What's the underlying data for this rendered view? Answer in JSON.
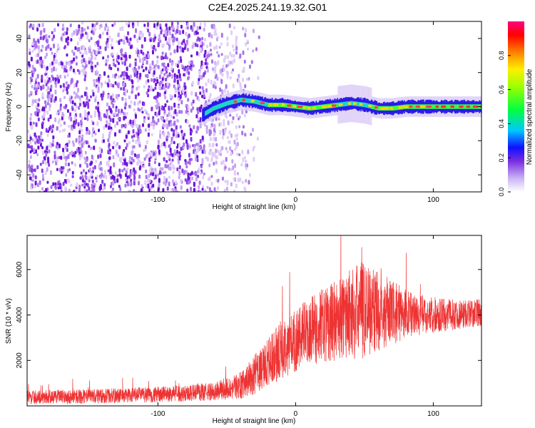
{
  "title": "C2E4.2025.241.19.32.G01",
  "chart_data": [
    {
      "type": "heatmap",
      "xlabel": "Height of straight line (km)",
      "ylabel": "Frequency (Hz)",
      "xlim": [
        -195,
        135
      ],
      "ylim": [
        -50,
        50
      ],
      "xticks": [
        -100,
        0,
        100
      ],
      "yticks": [
        -40,
        -20,
        0,
        20,
        40
      ],
      "colorbar": {
        "label": "Normalized spectral amplitude",
        "range": [
          0,
          1
        ],
        "ticks": [
          "0.0",
          "0.2",
          "0.4",
          "0.6",
          "0.8"
        ]
      },
      "signal": {
        "noise_region_until_km": -60,
        "signal_start_km": -68,
        "frequency_track": [
          {
            "x": -68,
            "f": -5
          },
          {
            "x": -60,
            "f": -1
          },
          {
            "x": -50,
            "f": 2
          },
          {
            "x": -40,
            "f": 4
          },
          {
            "x": -30,
            "f": 3
          },
          {
            "x": -20,
            "f": 1
          },
          {
            "x": -10,
            "f": 1
          },
          {
            "x": 0,
            "f": 0
          },
          {
            "x": 10,
            "f": -1
          },
          {
            "x": 20,
            "f": 0
          },
          {
            "x": 30,
            "f": 1
          },
          {
            "x": 40,
            "f": 2
          },
          {
            "x": 50,
            "f": 1
          },
          {
            "x": 60,
            "f": -1
          },
          {
            "x": 70,
            "f": -1
          },
          {
            "x": 80,
            "f": 0
          },
          {
            "x": 90,
            "f": 0
          },
          {
            "x": 100,
            "f": 0
          },
          {
            "x": 110,
            "f": 0
          },
          {
            "x": 120,
            "f": 0
          },
          {
            "x": 135,
            "f": 0
          }
        ]
      }
    },
    {
      "type": "line",
      "xlabel": "Height of straight line (km)",
      "ylabel": "SNR (10 * v/v)",
      "xlim": [
        -195,
        135
      ],
      "ylim": [
        0,
        7500
      ],
      "xticks": [
        -100,
        0,
        100
      ],
      "yticks": [
        2000,
        4000,
        6000
      ],
      "color": "#ee3333",
      "envelope": [
        {
          "x": -195,
          "mean": 380,
          "spread": 300
        },
        {
          "x": -150,
          "mean": 420,
          "spread": 320
        },
        {
          "x": -100,
          "mean": 500,
          "spread": 350
        },
        {
          "x": -60,
          "mean": 620,
          "spread": 400
        },
        {
          "x": -40,
          "mean": 900,
          "spread": 600
        },
        {
          "x": -25,
          "mean": 1600,
          "spread": 1000
        },
        {
          "x": -10,
          "mean": 2500,
          "spread": 1300
        },
        {
          "x": 10,
          "mean": 3300,
          "spread": 1500
        },
        {
          "x": 30,
          "mean": 3800,
          "spread": 1800
        },
        {
          "x": 50,
          "mean": 4300,
          "spread": 2200
        },
        {
          "x": 70,
          "mean": 4100,
          "spread": 1400
        },
        {
          "x": 90,
          "mean": 4000,
          "spread": 900
        },
        {
          "x": 110,
          "mean": 4000,
          "spread": 700
        },
        {
          "x": 135,
          "mean": 4100,
          "spread": 600
        }
      ]
    }
  ]
}
